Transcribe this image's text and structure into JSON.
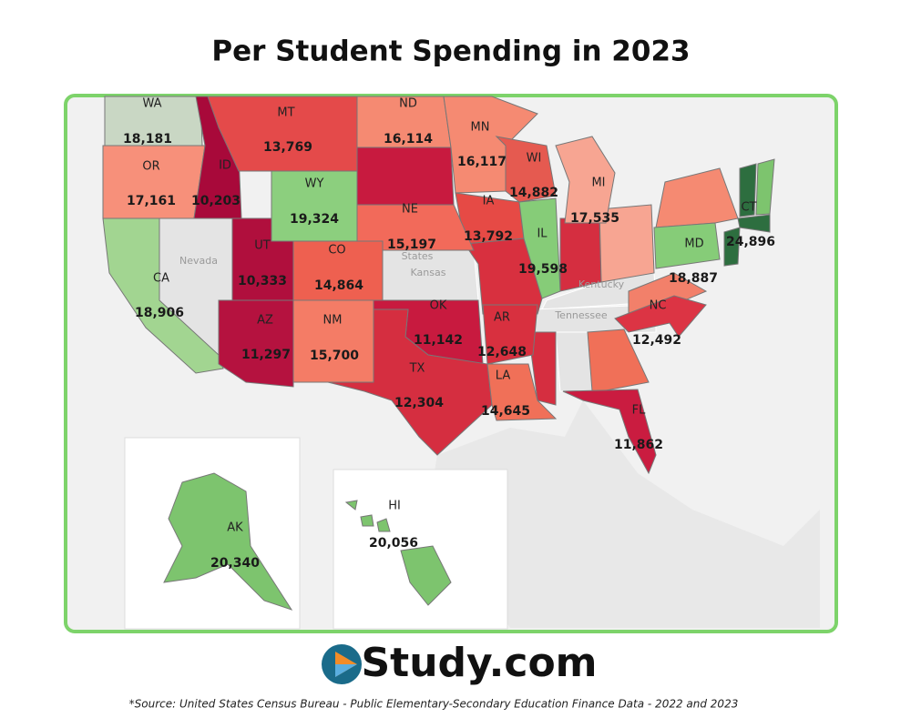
{
  "title": "Per Student Spending in 2023",
  "states": [
    {
      "abbr": "WA",
      "value": "18,181",
      "color": "#c9d7c4"
    },
    {
      "abbr": "OR",
      "value": "17,161",
      "color": "#f7907a"
    },
    {
      "abbr": "ID",
      "value": "10,203",
      "color": "#a8093a"
    },
    {
      "abbr": "MT",
      "value": "13,769",
      "color": "#e44a4a"
    },
    {
      "abbr": "ND",
      "value": "16,114",
      "color": "#f58a72"
    },
    {
      "abbr": "MN",
      "value": "16,117",
      "color": "#f58a72"
    },
    {
      "abbr": "WY",
      "value": "19,324",
      "color": "#8ccf7e"
    },
    {
      "abbr": "WI",
      "value": "14,882",
      "color": "#e55a50"
    },
    {
      "abbr": "MI",
      "value": "17,535",
      "color": "#f7a592"
    },
    {
      "abbr": "IA",
      "value": "13,792",
      "color": "#e64a45"
    },
    {
      "abbr": "NE",
      "value": "15,197",
      "color": "#f26a5a"
    },
    {
      "abbr": "IL",
      "value": "19,598",
      "color": "#86cc78"
    },
    {
      "abbr": "UT",
      "value": "10,333",
      "color": "#b00f3d"
    },
    {
      "abbr": "CO",
      "value": "14,864",
      "color": "#ee6050"
    },
    {
      "abbr": "CA",
      "value": "18,906",
      "color": "#a2d591"
    },
    {
      "abbr": "AZ",
      "value": "11,297",
      "color": "#b5123f"
    },
    {
      "abbr": "NM",
      "value": "15,700",
      "color": "#f47c66"
    },
    {
      "abbr": "OK",
      "value": "11,142",
      "color": "#c81a3f"
    },
    {
      "abbr": "AR",
      "value": "12,648",
      "color": "#d8303f"
    },
    {
      "abbr": "TX",
      "value": "12,304",
      "color": "#d52e40"
    },
    {
      "abbr": "LA",
      "value": "14,645",
      "color": "#f07058"
    },
    {
      "abbr": "NC",
      "value": "12,492",
      "color": "#dc3444"
    },
    {
      "abbr": "FL",
      "value": "11,862",
      "color": "#ca1c40"
    },
    {
      "abbr": "MD",
      "value": "18,887",
      "color": "#86cc78"
    },
    {
      "abbr": "CT",
      "value": "24,896",
      "color": "#2d6e3f"
    },
    {
      "abbr": "AK",
      "value": "20,340",
      "color": "#7dc46e"
    },
    {
      "abbr": "HI",
      "value": "20,056",
      "color": "#7dc46e"
    }
  ],
  "basemap_labels": [
    "Nevada",
    "States",
    "Kansas",
    "Kentucky",
    "Tennessee"
  ],
  "logo": "Study.com",
  "source": "*Source: United States Census Bureau  -  Public Elementary-Secondary Education Finance Data - 2022 and 2023"
}
